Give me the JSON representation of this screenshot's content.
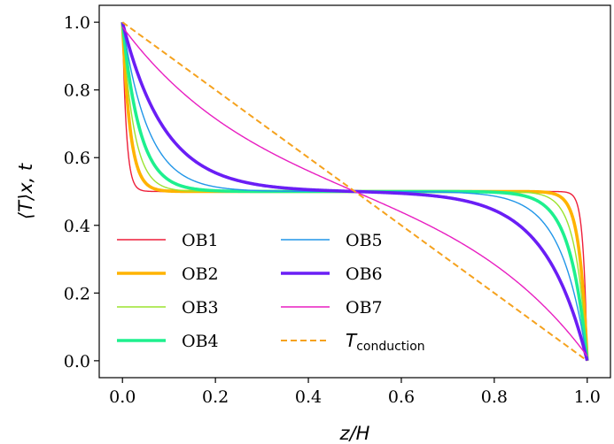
{
  "chart_data": {
    "type": "line",
    "xlabel": "z/H",
    "ylabel": "⟨T⟩x, t",
    "xlim": [
      -0.05,
      1.05
    ],
    "ylim": [
      -0.05,
      1.05
    ],
    "xticks": [
      "0.0",
      "0.2",
      "0.4",
      "0.6",
      "0.8",
      "1.0"
    ],
    "yticks": [
      "0.0",
      "0.2",
      "0.4",
      "0.6",
      "0.8",
      "1.0"
    ],
    "grid": false,
    "legend_position": "lower-left, two columns",
    "series": [
      {
        "name": "OB1",
        "color": "#ee1f3a",
        "width": 1.4,
        "dash": false,
        "steepness": 120
      },
      {
        "name": "OB2",
        "color": "#ffb300",
        "width": 3.6,
        "dash": false,
        "steepness": 60
      },
      {
        "name": "OB3",
        "color": "#9be32e",
        "width": 1.4,
        "dash": false,
        "steepness": 40
      },
      {
        "name": "OB4",
        "color": "#1ef08e",
        "width": 3.6,
        "dash": false,
        "steepness": 27
      },
      {
        "name": "OB5",
        "color": "#2196e8",
        "width": 1.4,
        "dash": false,
        "steepness": 18
      },
      {
        "name": "OB6",
        "color": "#6a1ef5",
        "width": 3.6,
        "dash": false,
        "steepness": 11
      },
      {
        "name": "OB7",
        "color": "#e81fc1",
        "width": 1.4,
        "dash": false,
        "steepness": 3.6
      },
      {
        "name": "T",
        "subscript": "conduction",
        "color": "#f5a21e",
        "width": 2.0,
        "dash": true,
        "steepness": 0
      }
    ]
  }
}
